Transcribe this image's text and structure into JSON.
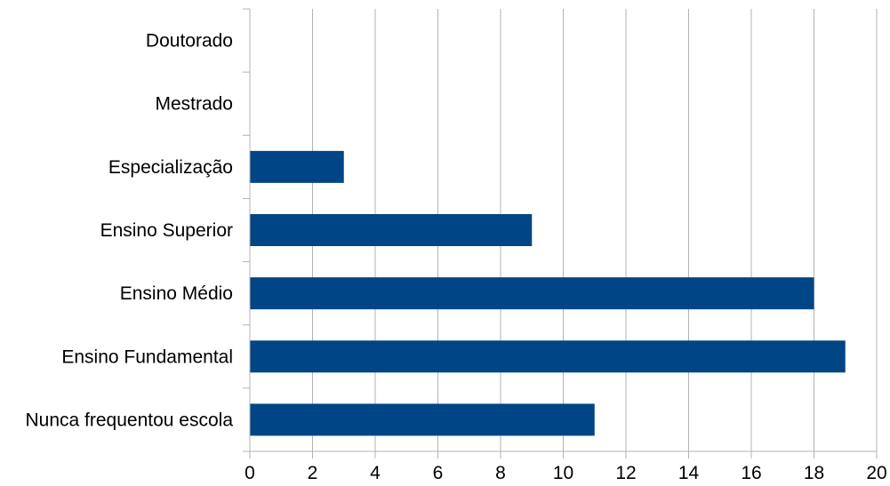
{
  "chart_data": {
    "type": "bar",
    "orientation": "horizontal",
    "categories": [
      "Doutorado",
      "Mestrado",
      "Especialização",
      "Ensino Superior",
      "Ensino Médio",
      "Ensino Fundamental",
      "Nunca frequentou escola"
    ],
    "values": [
      0,
      0,
      3,
      9,
      18,
      19,
      11
    ],
    "xlim": [
      0,
      20
    ],
    "xticks": [
      0,
      2,
      4,
      6,
      8,
      10,
      12,
      14,
      16,
      18,
      20
    ],
    "title": "",
    "xlabel": "",
    "ylabel": "",
    "grid": "vertical",
    "legend": "none",
    "bar_color": "#004586"
  }
}
